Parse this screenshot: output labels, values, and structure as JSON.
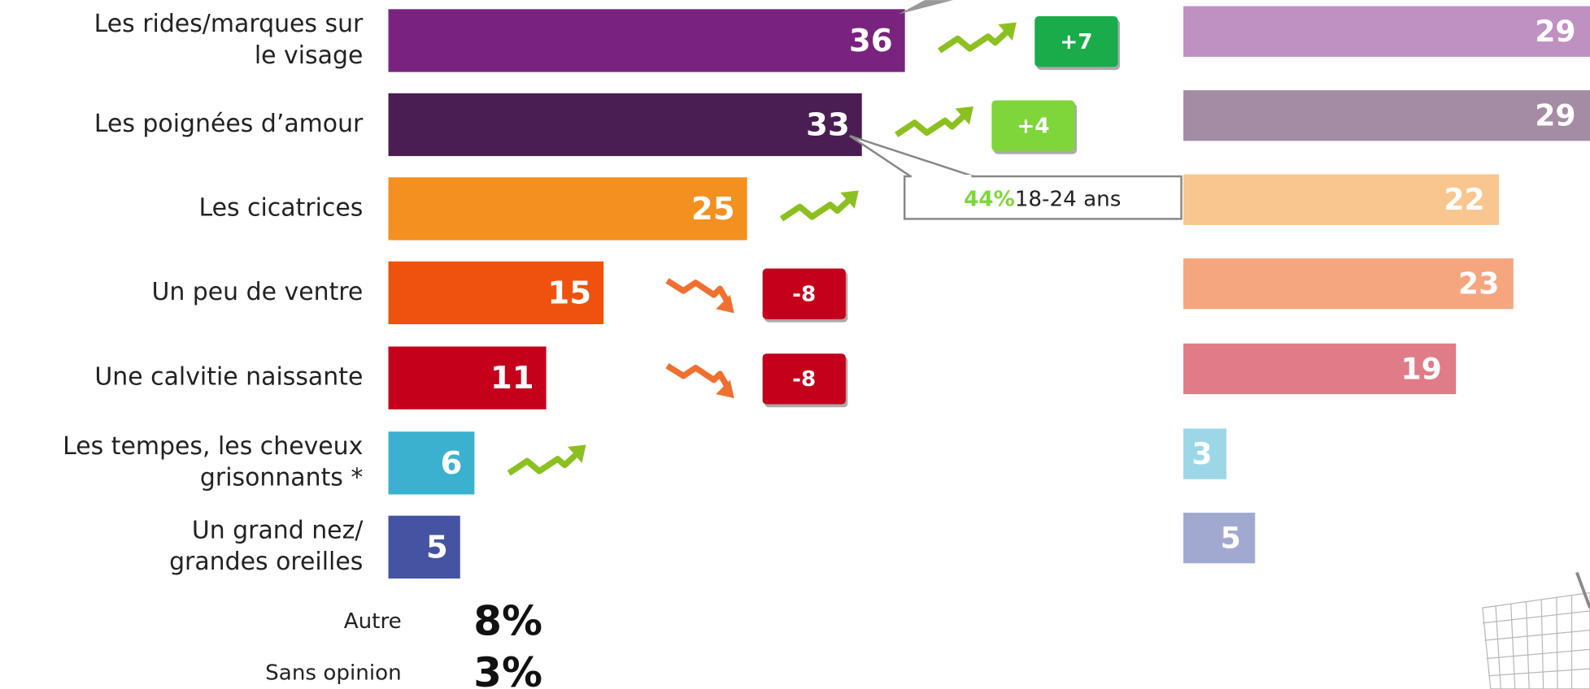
{
  "chart_data": [
    {
      "type": "hbar",
      "categories": [
        [
          "Les rides/marques sur",
          "le visage"
        ],
        [
          "Les poignées d’amour"
        ],
        [
          "Les cicatrices"
        ],
        [
          "Un peu de ventre"
        ],
        [
          "Une calvitie naissante"
        ],
        [
          "Les tempes, les cheveux",
          "grisonnants *"
        ],
        [
          "Un grand nez/",
          "grandes oreilles"
        ]
      ],
      "values": [
        36,
        33,
        25,
        15,
        11,
        6,
        5
      ],
      "colors": [
        "#79237f",
        "#4a1e52",
        "#f39020",
        "#ef520e",
        "#c4001a",
        "#3bb0cf",
        "#4553a3"
      ],
      "trends": [
        "up",
        "up",
        "up",
        "down",
        "down",
        "up",
        null
      ],
      "changes": [
        7,
        4,
        null,
        -8,
        -8,
        null,
        null
      ],
      "change_labels": [
        "+7",
        "+4",
        null,
        "-8",
        "-8",
        null,
        null
      ],
      "change_colors": [
        "#1aab4b",
        "#7ed63a",
        null,
        "#c4001a",
        "#c4001a",
        null,
        null
      ],
      "callout": {
        "value": 44,
        "label": "44%",
        "text": "18-24 ans"
      },
      "others": [
        {
          "label": "Autre",
          "value": 8,
          "value_label": "8%"
        },
        {
          "label": "Sans opinion",
          "value": 3,
          "value_label": "3%"
        }
      ]
    },
    {
      "type": "hbar",
      "values": [
        29,
        29,
        22,
        23,
        19,
        3,
        5
      ],
      "colors": [
        "#bf90c2",
        "#a48ca5",
        "#f9c68f",
        "#f6a67f",
        "#e07c87",
        "#9dd7e7",
        "#a2a9d1"
      ]
    }
  ]
}
